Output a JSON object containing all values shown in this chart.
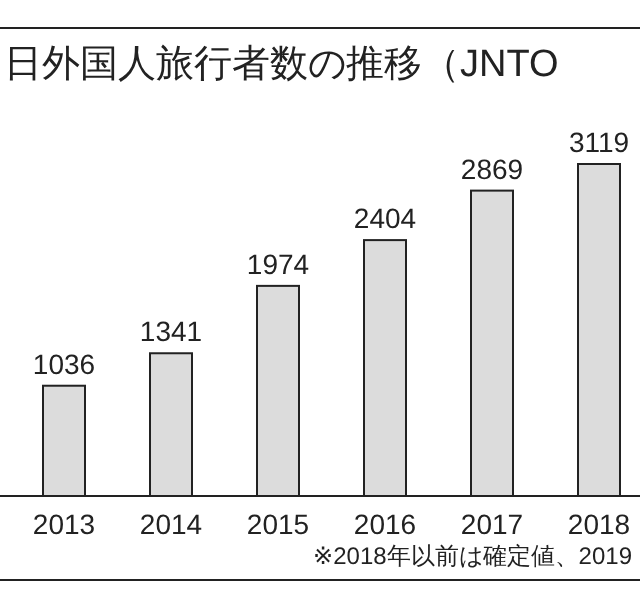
{
  "chart_data": {
    "type": "bar",
    "title": "日外国人旅行者数の推移（JNTO",
    "categories": [
      "2013",
      "2014",
      "2015",
      "2016",
      "2017",
      "2018"
    ],
    "values": [
      1036,
      1341,
      1974,
      2404,
      2869,
      3119
    ],
    "color": "#dcdcdc",
    "data_labels": true,
    "annotations": [
      "※2018年以前は確定値、2019"
    ]
  }
}
